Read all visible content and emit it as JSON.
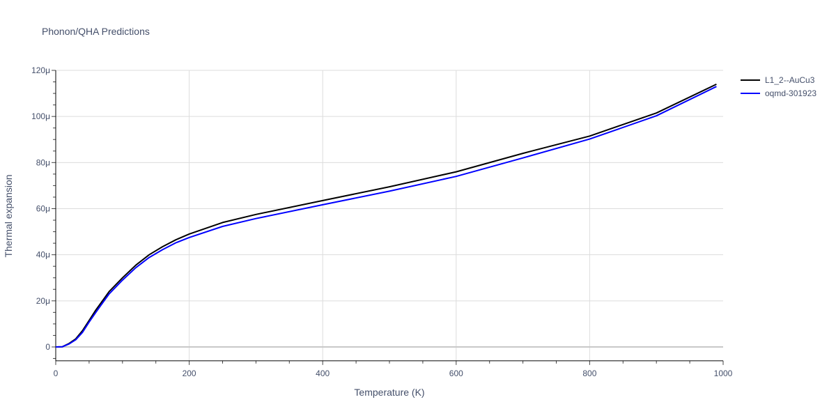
{
  "chart_data": {
    "type": "line",
    "title": "Phonon/QHA Predictions",
    "xlabel": "Temperature (K)",
    "ylabel": "Thermal expansion",
    "xlim": [
      0,
      1000
    ],
    "ylim": [
      -6,
      120
    ],
    "y_unit_suffix": "μ",
    "xticks": [
      0,
      200,
      400,
      600,
      800,
      1000
    ],
    "xtick_labels": [
      "0",
      "200",
      "400",
      "600",
      "800",
      "1000"
    ],
    "yticks": [
      0,
      20,
      40,
      60,
      80,
      100,
      120
    ],
    "ytick_labels": [
      "0",
      "20μ",
      "40μ",
      "60μ",
      "80μ",
      "100μ",
      "120μ"
    ],
    "grid": true,
    "legend_position": "top-right",
    "series": [
      {
        "name": "L1_2--AuCu3",
        "color": "#000000",
        "x": [
          0,
          10,
          20,
          30,
          40,
          50,
          60,
          70,
          80,
          100,
          120,
          140,
          160,
          180,
          200,
          250,
          300,
          400,
          500,
          600,
          700,
          800,
          900,
          990
        ],
        "y": [
          0,
          0.1,
          1.5,
          3.5,
          7,
          11.5,
          16,
          20,
          24,
          30,
          35.5,
          40,
          43.5,
          46.5,
          49,
          54,
          57.5,
          63.5,
          69.5,
          76,
          84,
          91.5,
          101.5,
          114
        ]
      },
      {
        "name": "oqmd-301923",
        "color": "#0000ff",
        "x": [
          0,
          10,
          20,
          30,
          40,
          50,
          60,
          70,
          80,
          100,
          120,
          140,
          160,
          180,
          200,
          250,
          300,
          400,
          500,
          600,
          700,
          800,
          900,
          990
        ],
        "y": [
          0,
          0.1,
          1.3,
          3.1,
          6.3,
          10.8,
          15,
          19,
          23,
          29,
          34.4,
          38.8,
          42.2,
          45.2,
          47.5,
          52.3,
          55.7,
          61.7,
          67.6,
          74,
          82,
          90.2,
          100.3,
          113
        ]
      }
    ]
  }
}
